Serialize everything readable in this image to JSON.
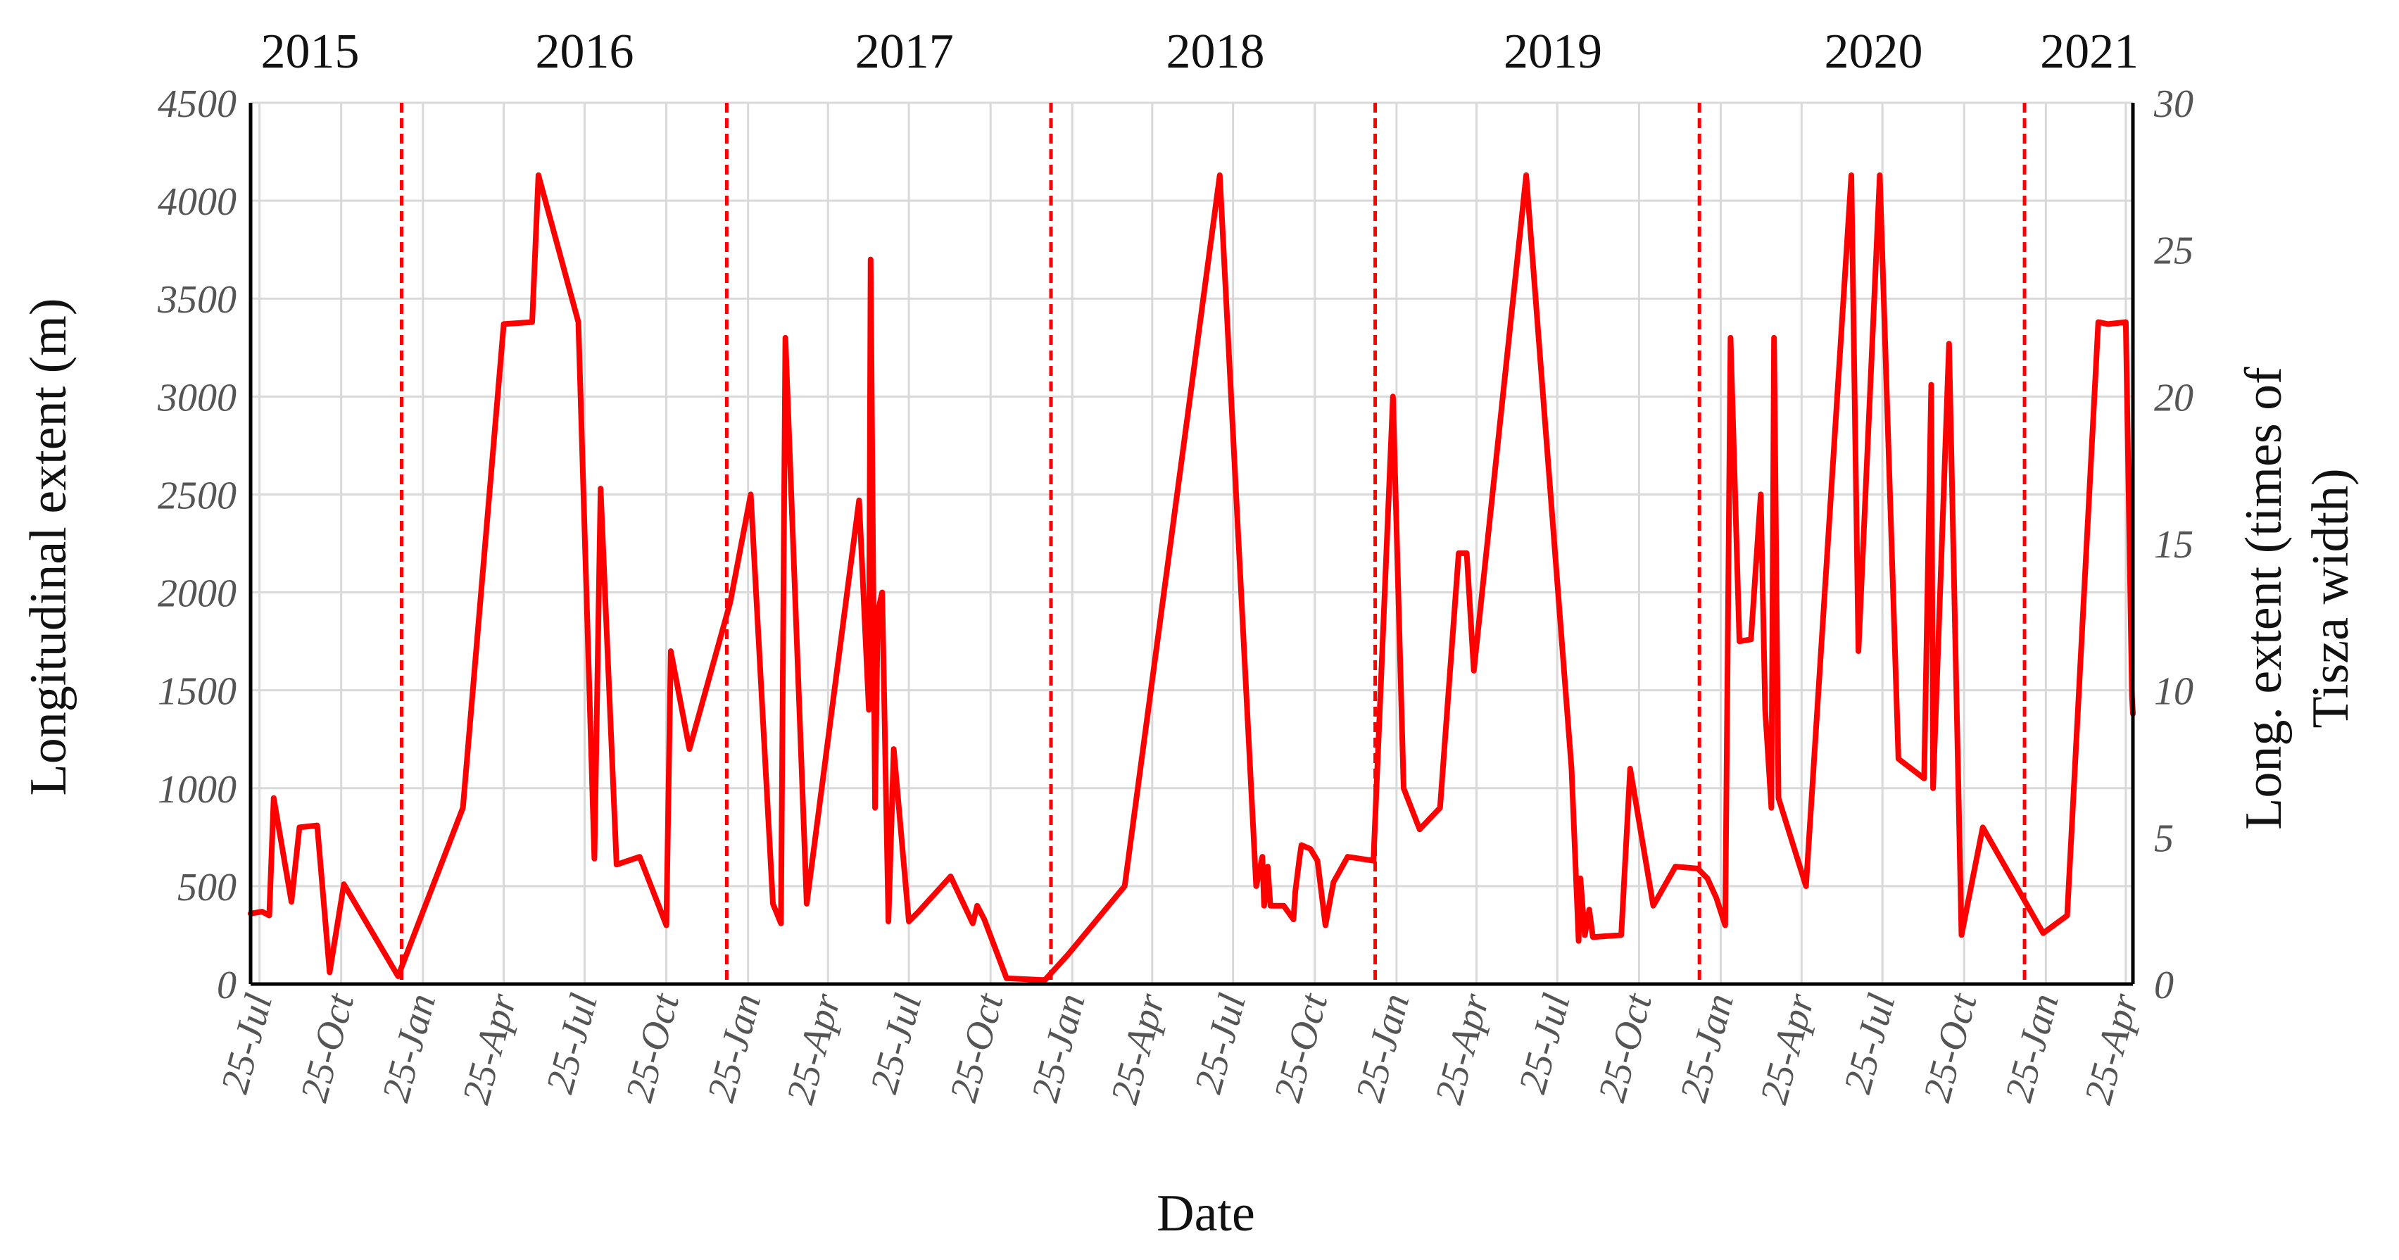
{
  "chart_data": {
    "type": "line",
    "xlabel": "Date",
    "ylabel": "Longitudinal extent  (m)",
    "y2label_line1": "Long. extent (times of",
    "y2label_line2": "Tisza width)",
    "x_range": [
      "2015-07-15",
      "2021-05-03"
    ],
    "ylim": [
      0,
      4500
    ],
    "y2lim": [
      0,
      30
    ],
    "yticks": [
      0,
      500,
      1000,
      1500,
      2000,
      2500,
      3000,
      3500,
      4000,
      4500
    ],
    "y2ticks": [
      0,
      5,
      10,
      15,
      20,
      25,
      30
    ],
    "x_tick_dates": [
      "2015-07-25",
      "2015-10-25",
      "2016-01-25",
      "2016-04-25",
      "2016-07-25",
      "2016-10-25",
      "2017-01-25",
      "2017-04-25",
      "2017-07-25",
      "2017-10-25",
      "2018-01-25",
      "2018-04-25",
      "2018-07-25",
      "2018-10-25",
      "2019-01-25",
      "2019-04-25",
      "2019-07-25",
      "2019-10-25",
      "2020-01-25",
      "2020-04-25",
      "2020-07-25",
      "2020-10-25",
      "2021-01-25",
      "2021-04-25"
    ],
    "x_tick_labels": [
      "25-Jul",
      "25-Oct",
      "25-Jan",
      "25-Apr",
      "25-Jul",
      "25-Oct",
      "25-Jan",
      "25-Apr",
      "25-Jul",
      "25-Oct",
      "25-Jan",
      "25-Apr",
      "25-Jul",
      "25-Oct",
      "25-Jan",
      "25-Apr",
      "25-Jul",
      "25-Oct",
      "25-Jan",
      "25-Apr",
      "25-Jul",
      "25-Oct",
      "25-Jan",
      "25-Apr"
    ],
    "year_labels": [
      {
        "text": "2015",
        "date": "2015-09-20"
      },
      {
        "text": "2016",
        "date": "2016-07-25"
      },
      {
        "text": "2017",
        "date": "2017-07-20"
      },
      {
        "text": "2018",
        "date": "2018-07-05"
      },
      {
        "text": "2019",
        "date": "2019-07-20"
      },
      {
        "text": "2020",
        "date": "2020-07-15"
      },
      {
        "text": "2021",
        "date": "2021-03-15"
      }
    ],
    "year_dividers": [
      "2016-01-01",
      "2017-01-01",
      "2018-01-01",
      "2019-01-01",
      "2020-01-01",
      "2021-01-01"
    ],
    "grid": true,
    "series": [
      {
        "color": "#ff0000",
        "points": [
          [
            "2015-07-15",
            360
          ],
          [
            "2015-07-28",
            370
          ],
          [
            "2015-08-05",
            350
          ],
          [
            "2015-08-10",
            950
          ],
          [
            "2015-08-30",
            420
          ],
          [
            "2015-09-08",
            800
          ],
          [
            "2015-09-28",
            810
          ],
          [
            "2015-10-12",
            60
          ],
          [
            "2015-10-28",
            510
          ],
          [
            "2015-12-28",
            40
          ],
          [
            "2016-03-10",
            900
          ],
          [
            "2016-04-25",
            3370
          ],
          [
            "2016-05-27",
            3380
          ],
          [
            "2016-06-03",
            4130
          ],
          [
            "2016-07-18",
            3380
          ],
          [
            "2016-08-05",
            640
          ],
          [
            "2016-08-12",
            2530
          ],
          [
            "2016-08-30",
            610
          ],
          [
            "2016-09-25",
            650
          ],
          [
            "2016-10-25",
            300
          ],
          [
            "2016-10-30",
            1700
          ],
          [
            "2016-11-20",
            1200
          ],
          [
            "2017-01-05",
            1950
          ],
          [
            "2017-01-28",
            2500
          ],
          [
            "2017-02-22",
            410
          ],
          [
            "2017-03-03",
            310
          ],
          [
            "2017-03-08",
            3300
          ],
          [
            "2017-04-01",
            410
          ],
          [
            "2017-05-30",
            2470
          ],
          [
            "2017-06-10",
            1400
          ],
          [
            "2017-06-12",
            3700
          ],
          [
            "2017-06-17",
            900
          ],
          [
            "2017-06-20",
            1900
          ],
          [
            "2017-06-25",
            2000
          ],
          [
            "2017-07-02",
            320
          ],
          [
            "2017-07-08",
            1200
          ],
          [
            "2017-07-25",
            320
          ],
          [
            "2017-08-05",
            370
          ],
          [
            "2017-09-10",
            550
          ],
          [
            "2017-10-05",
            310
          ],
          [
            "2017-10-10",
            400
          ],
          [
            "2017-10-18",
            330
          ],
          [
            "2017-11-12",
            30
          ],
          [
            "2017-12-25",
            20
          ],
          [
            "2018-01-20",
            150
          ],
          [
            "2018-03-25",
            500
          ],
          [
            "2018-07-10",
            4130
          ],
          [
            "2018-08-20",
            500
          ],
          [
            "2018-08-27",
            650
          ],
          [
            "2018-08-29",
            400
          ],
          [
            "2018-09-02",
            600
          ],
          [
            "2018-09-05",
            400
          ],
          [
            "2018-09-10",
            400
          ],
          [
            "2018-09-20",
            400
          ],
          [
            "2018-10-01",
            330
          ],
          [
            "2018-10-03",
            470
          ],
          [
            "2018-10-08",
            650
          ],
          [
            "2018-10-10",
            710
          ],
          [
            "2018-10-20",
            690
          ],
          [
            "2018-10-28",
            630
          ],
          [
            "2018-11-06",
            300
          ],
          [
            "2018-11-15",
            520
          ],
          [
            "2018-12-01",
            650
          ],
          [
            "2018-12-30",
            630
          ],
          [
            "2019-01-21",
            3000
          ],
          [
            "2019-02-02",
            1000
          ],
          [
            "2019-02-20",
            790
          ],
          [
            "2019-03-15",
            900
          ],
          [
            "2019-04-05",
            2200
          ],
          [
            "2019-04-14",
            2200
          ],
          [
            "2019-04-22",
            1600
          ],
          [
            "2019-06-20",
            4130
          ],
          [
            "2019-08-10",
            1100
          ],
          [
            "2019-08-18",
            220
          ],
          [
            "2019-08-20",
            540
          ],
          [
            "2019-08-25",
            250
          ],
          [
            "2019-08-30",
            380
          ],
          [
            "2019-09-03",
            240
          ],
          [
            "2019-10-05",
            250
          ],
          [
            "2019-10-15",
            1100
          ],
          [
            "2019-11-10",
            400
          ],
          [
            "2019-12-05",
            600
          ],
          [
            "2019-12-30",
            590
          ],
          [
            "2020-01-10",
            540
          ],
          [
            "2020-01-20",
            440
          ],
          [
            "2020-01-30",
            300
          ],
          [
            "2020-02-05",
            3300
          ],
          [
            "2020-02-15",
            1750
          ],
          [
            "2020-02-28",
            1760
          ],
          [
            "2020-03-10",
            2500
          ],
          [
            "2020-03-15",
            1400
          ],
          [
            "2020-03-22",
            900
          ],
          [
            "2020-03-25",
            3300
          ],
          [
            "2020-03-30",
            950
          ],
          [
            "2020-04-30",
            500
          ],
          [
            "2020-06-20",
            4130
          ],
          [
            "2020-06-28",
            1700
          ],
          [
            "2020-07-22",
            4130
          ],
          [
            "2020-08-12",
            1150
          ],
          [
            "2020-09-10",
            1050
          ],
          [
            "2020-09-18",
            3060
          ],
          [
            "2020-09-20",
            1000
          ],
          [
            "2020-10-08",
            3270
          ],
          [
            "2020-10-22",
            250
          ],
          [
            "2020-11-15",
            800
          ],
          [
            "2021-01-22",
            260
          ],
          [
            "2021-02-18",
            350
          ],
          [
            "2021-03-25",
            3380
          ],
          [
            "2021-04-05",
            3370
          ],
          [
            "2021-04-25",
            3380
          ],
          [
            "2021-05-02",
            1470
          ],
          [
            "2021-05-03",
            1380
          ]
        ]
      }
    ]
  }
}
